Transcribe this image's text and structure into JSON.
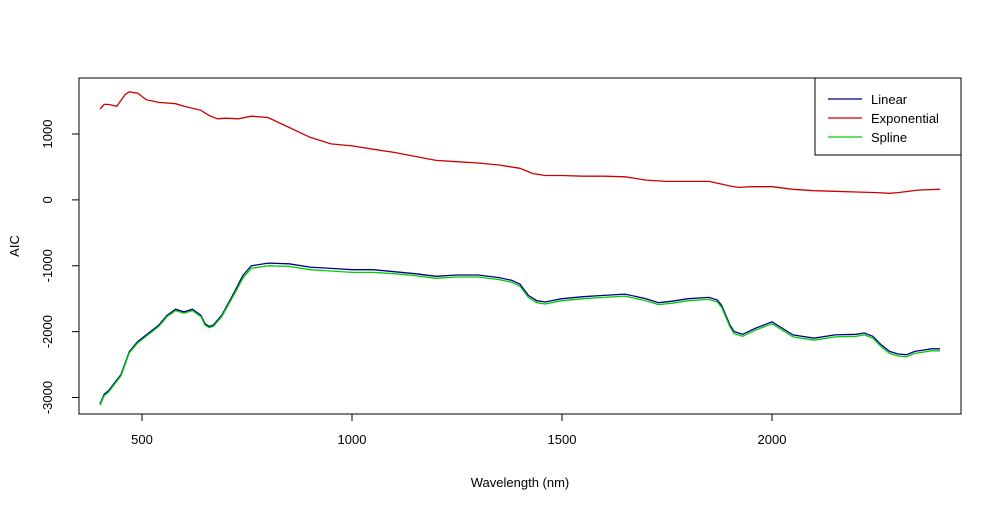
{
  "chart_data": {
    "type": "line",
    "title": "",
    "xlabel": "Wavelength (nm)",
    "ylabel": "AIC",
    "xlim": [
      350,
      2450
    ],
    "ylim": [
      -3250,
      1850
    ],
    "x_ticks": [
      500,
      1000,
      1500,
      2000
    ],
    "x_tick_labels": [
      "500",
      "1000",
      "1500",
      "2000"
    ],
    "y_ticks": [
      -3000,
      -2000,
      -1000,
      0,
      1000
    ],
    "y_tick_labels": [
      "-3000",
      "-2000",
      "-1000",
      "0",
      "1000"
    ],
    "grid": false,
    "legend_position": "top-right",
    "series": [
      {
        "name": "Linear",
        "color": "#00008B",
        "x": [
          400,
          410,
          420,
          450,
          470,
          490,
          500,
          520,
          540,
          560,
          580,
          600,
          620,
          640,
          650,
          660,
          670,
          690,
          720,
          740,
          760,
          800,
          850,
          900,
          950,
          1000,
          1050,
          1100,
          1150,
          1200,
          1250,
          1300,
          1350,
          1380,
          1400,
          1420,
          1440,
          1460,
          1500,
          1550,
          1600,
          1650,
          1700,
          1730,
          1760,
          1800,
          1850,
          1870,
          1880,
          1900,
          1910,
          1930,
          1960,
          2000,
          2050,
          2100,
          2150,
          2200,
          2220,
          2240,
          2260,
          2280,
          2300,
          2320,
          2340,
          2360,
          2380,
          2400
        ],
        "y": [
          -3100,
          -2950,
          -2900,
          -2650,
          -2300,
          -2150,
          -2100,
          -2000,
          -1900,
          -1750,
          -1660,
          -1700,
          -1660,
          -1750,
          -1880,
          -1920,
          -1900,
          -1750,
          -1400,
          -1150,
          -1000,
          -960,
          -970,
          -1020,
          -1040,
          -1060,
          -1060,
          -1090,
          -1120,
          -1160,
          -1140,
          -1140,
          -1180,
          -1220,
          -1280,
          -1450,
          -1530,
          -1550,
          -1500,
          -1470,
          -1450,
          -1430,
          -1500,
          -1560,
          -1540,
          -1500,
          -1480,
          -1520,
          -1600,
          -1900,
          -2000,
          -2040,
          -1950,
          -1850,
          -2050,
          -2100,
          -2050,
          -2040,
          -2020,
          -2070,
          -2200,
          -2300,
          -2340,
          -2350,
          -2300,
          -2280,
          -2260,
          -2260
        ]
      },
      {
        "name": "Exponential",
        "color": "#CD0000",
        "x": [
          400,
          410,
          420,
          440,
          460,
          470,
          490,
          510,
          540,
          580,
          600,
          640,
          660,
          680,
          700,
          730,
          760,
          800,
          850,
          900,
          950,
          1000,
          1050,
          1100,
          1150,
          1200,
          1250,
          1300,
          1350,
          1400,
          1430,
          1460,
          1500,
          1550,
          1600,
          1650,
          1700,
          1750,
          1800,
          1850,
          1880,
          1900,
          1920,
          1950,
          2000,
          2050,
          2100,
          2150,
          2200,
          2250,
          2280,
          2300,
          2350,
          2400
        ],
        "y": [
          1380,
          1450,
          1450,
          1420,
          1600,
          1640,
          1620,
          1520,
          1480,
          1460,
          1420,
          1360,
          1280,
          1230,
          1240,
          1230,
          1270,
          1250,
          1100,
          950,
          850,
          820,
          770,
          720,
          660,
          600,
          580,
          560,
          530,
          480,
          400,
          370,
          370,
          360,
          360,
          350,
          300,
          280,
          280,
          280,
          240,
          210,
          190,
          200,
          200,
          160,
          140,
          130,
          120,
          110,
          100,
          110,
          150,
          160
        ]
      },
      {
        "name": "Spline",
        "color": "#00CD00",
        "x": [
          400,
          410,
          420,
          450,
          470,
          490,
          500,
          520,
          540,
          560,
          580,
          600,
          620,
          640,
          650,
          660,
          670,
          690,
          720,
          740,
          760,
          800,
          850,
          900,
          950,
          1000,
          1050,
          1100,
          1150,
          1200,
          1250,
          1300,
          1350,
          1380,
          1400,
          1420,
          1440,
          1460,
          1500,
          1550,
          1600,
          1650,
          1700,
          1730,
          1760,
          1800,
          1850,
          1870,
          1880,
          1900,
          1910,
          1930,
          1960,
          2000,
          2050,
          2100,
          2150,
          2200,
          2220,
          2240,
          2260,
          2280,
          2300,
          2320,
          2340,
          2360,
          2380,
          2400
        ],
        "y": [
          -3120,
          -2970,
          -2920,
          -2670,
          -2320,
          -2170,
          -2120,
          -2020,
          -1920,
          -1770,
          -1680,
          -1720,
          -1680,
          -1770,
          -1900,
          -1940,
          -1920,
          -1770,
          -1430,
          -1190,
          -1040,
          -1000,
          -1010,
          -1060,
          -1080,
          -1100,
          -1100,
          -1120,
          -1150,
          -1190,
          -1170,
          -1170,
          -1210,
          -1250,
          -1310,
          -1480,
          -1560,
          -1580,
          -1530,
          -1500,
          -1480,
          -1460,
          -1530,
          -1590,
          -1570,
          -1530,
          -1510,
          -1550,
          -1630,
          -1930,
          -2030,
          -2070,
          -1980,
          -1880,
          -2080,
          -2130,
          -2080,
          -2070,
          -2050,
          -2100,
          -2230,
          -2330,
          -2370,
          -2380,
          -2330,
          -2310,
          -2290,
          -2290
        ]
      }
    ]
  }
}
